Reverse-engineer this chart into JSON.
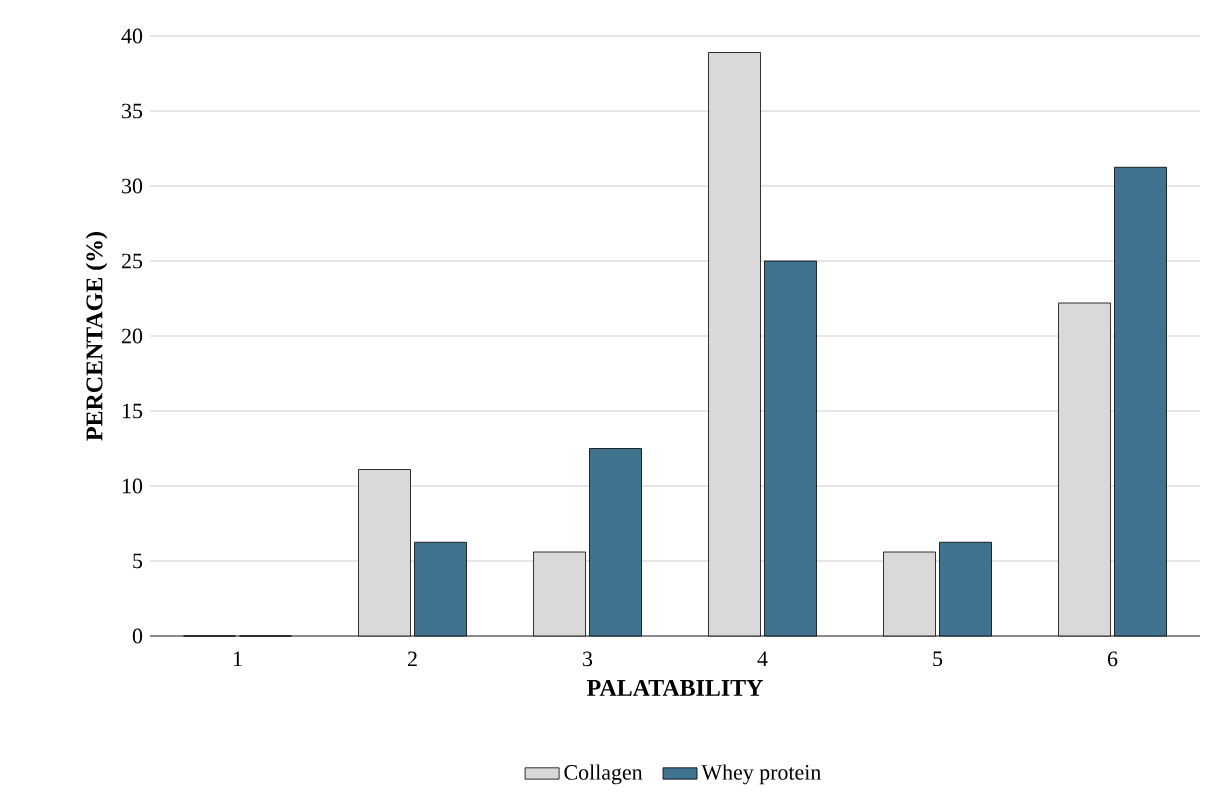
{
  "chart_data": {
    "type": "bar",
    "xlabel": "PALATABILITY",
    "ylabel": "PERCENTAGE (%)",
    "categories": [
      "1",
      "2",
      "3",
      "4",
      "5",
      "6"
    ],
    "series": [
      {
        "name": "Collagen",
        "color": "#d9d9d9",
        "values": [
          0,
          11.1,
          5.6,
          38.9,
          5.6,
          22.2
        ]
      },
      {
        "name": "Whey protein",
        "color": "#3f7390",
        "values": [
          0,
          6.25,
          12.5,
          25,
          6.25,
          31.25
        ]
      }
    ],
    "ylim": [
      0,
      40
    ],
    "yticks": [
      0,
      5,
      10,
      15,
      20,
      25,
      30,
      35,
      40
    ],
    "grid": "y",
    "legend": "bottom"
  }
}
